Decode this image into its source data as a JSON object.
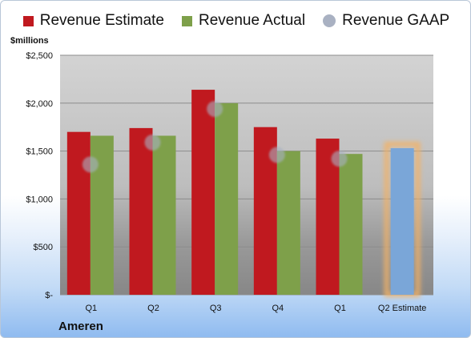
{
  "chart_data": {
    "type": "bar",
    "ylabel": "$millions",
    "company": "Ameren",
    "categories": [
      "Q1",
      "Q2",
      "Q3",
      "Q4",
      "Q1",
      "Q2 Estimate"
    ],
    "ylim": [
      0,
      2500
    ],
    "yticks": [
      0,
      500,
      1000,
      1500,
      2000,
      2500
    ],
    "ytick_labels": [
      "$-",
      "$500",
      "$1,000",
      "$1,500",
      "$2,000",
      "$2,500"
    ],
    "grid": true,
    "legend_position": "top",
    "series": [
      {
        "name": "Revenue Estimate",
        "color": "#c0191f",
        "values": [
          1700,
          1740,
          2140,
          1750,
          1630,
          null
        ]
      },
      {
        "name": "Revenue Actual",
        "color": "#7ea04a",
        "values": [
          1660,
          1660,
          2000,
          1500,
          1470,
          null
        ]
      },
      {
        "name": "Revenue GAAP",
        "color": "#a9b1c2",
        "values": [
          1360,
          1590,
          1940,
          1460,
          1420,
          null
        ]
      }
    ],
    "estimate": {
      "category": "Q2 Estimate",
      "value": 1530,
      "color": "#7aa6d8",
      "glow": "#f3b264"
    }
  }
}
